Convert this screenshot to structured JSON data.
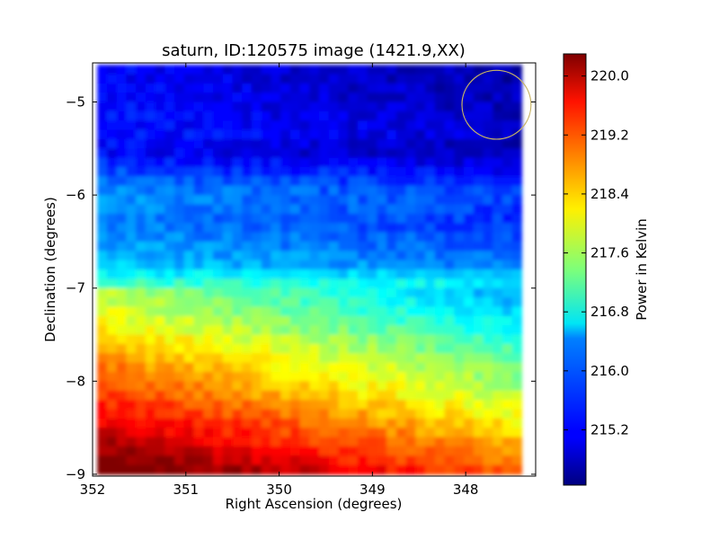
{
  "chart_data": {
    "type": "heatmap",
    "title": "saturn, ID:120575 image (1421.9,XX)",
    "xlabel": "Right Ascension (degrees)",
    "ylabel": "Declination (degrees)",
    "xlim": [
      352.0,
      347.25
    ],
    "ylim": [
      -9.02,
      -4.58
    ],
    "x_ticks": [
      352,
      351,
      350,
      349,
      348
    ],
    "x_tick_labels": [
      "352",
      "351",
      "350",
      "349",
      "348"
    ],
    "y_ticks": [
      -5,
      -6,
      -7,
      -8,
      -9
    ],
    "y_tick_labels": [
      "−5",
      "−6",
      "−7",
      "−8",
      "−9"
    ],
    "colorbar": {
      "label": "Power in Kelvin",
      "colormap": "jet",
      "range": [
        214.45,
        220.3
      ],
      "ticks": [
        215.2,
        216.0,
        216.8,
        217.6,
        218.4,
        219.2,
        220.0
      ],
      "tick_labels": [
        "215.2",
        "216.0",
        "216.8",
        "217.6",
        "218.4",
        "219.2",
        "220.0"
      ]
    },
    "map_extent": {
      "ra": [
        351.95,
        347.4
      ],
      "dec": [
        -9.0,
        -4.6
      ]
    },
    "map_dec_profile": [
      {
        "dec": -4.6,
        "power": 214.9
      },
      {
        "dec": -5.0,
        "power": 215.0
      },
      {
        "dec": -5.35,
        "power": 215.1
      },
      {
        "dec": -5.55,
        "power": 214.95
      },
      {
        "dec": -5.8,
        "power": 215.5
      },
      {
        "dec": -6.0,
        "power": 215.8
      },
      {
        "dec": -6.3,
        "power": 215.7
      },
      {
        "dec": -6.55,
        "power": 215.9
      },
      {
        "dec": -6.75,
        "power": 216.1
      },
      {
        "dec": -6.95,
        "power": 216.8
      },
      {
        "dec": -7.2,
        "power": 217.1
      },
      {
        "dec": -7.4,
        "power": 217.4
      },
      {
        "dec": -7.65,
        "power": 217.8
      },
      {
        "dec": -7.85,
        "power": 218.1
      },
      {
        "dec": -8.1,
        "power": 218.4
      },
      {
        "dec": -8.35,
        "power": 218.8
      },
      {
        "dec": -8.6,
        "power": 219.2
      },
      {
        "dec": -8.85,
        "power": 219.6
      },
      {
        "dec": -9.0,
        "power": 219.9
      }
    ],
    "map_ra_gradient_k_per_deg": 0.35,
    "marker_circle": {
      "ra": 347.67,
      "dec": -5.03,
      "radius_deg": 0.37,
      "color": "#c8b464"
    }
  }
}
